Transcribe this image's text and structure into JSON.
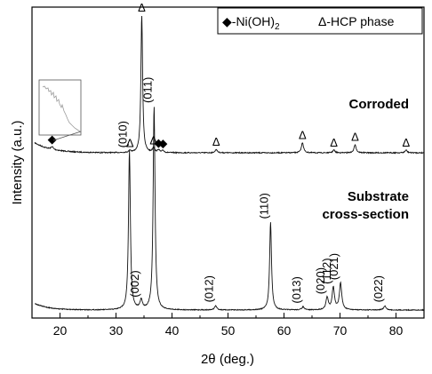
{
  "chart_data": {
    "type": "line",
    "xlabel": "2θ (deg.)",
    "ylabel": "Intensity (a.u.)",
    "xlim": [
      15,
      85
    ],
    "xticks": [
      "20",
      "30",
      "40",
      "50",
      "60",
      "70",
      "80"
    ],
    "legend": {
      "placement": "top-right",
      "entries": [
        {
          "symbol": "◆",
          "label": "-Ni(OH)",
          "subscript": "2"
        },
        {
          "symbol": "Δ",
          "label": "-HCP phase"
        }
      ]
    },
    "series": [
      {
        "name": "Corroded",
        "peaks": [
          {
            "x": 18.6,
            "height": 0.02,
            "marker": "◆"
          },
          {
            "x": 32.5,
            "height": 0.015,
            "marker": "Δ"
          },
          {
            "x": 34.6,
            "height": 1.0,
            "marker": "Δ"
          },
          {
            "x": 36.7,
            "height": 0.035,
            "marker": "Δ"
          },
          {
            "x": 37.6,
            "height": 0.02,
            "marker": "◆"
          },
          {
            "x": 38.4,
            "height": 0.015,
            "marker": "◆"
          },
          {
            "x": 47.9,
            "height": 0.025,
            "marker": "Δ"
          },
          {
            "x": 63.3,
            "height": 0.075,
            "marker": "Δ"
          },
          {
            "x": 68.9,
            "height": 0.02,
            "marker": "Δ"
          },
          {
            "x": 72.7,
            "height": 0.06,
            "marker": "Δ"
          },
          {
            "x": 81.8,
            "height": 0.02,
            "marker": "Δ"
          }
        ]
      },
      {
        "name": "Substrate cross-section",
        "label_lines": [
          "Substrate",
          "cross-section"
        ],
        "peaks": [
          {
            "x": 32.4,
            "height": 0.78,
            "label": "(010)"
          },
          {
            "x": 34.5,
            "height": 0.045,
            "label": "(002)"
          },
          {
            "x": 36.8,
            "height": 1.0,
            "label": "(011)"
          },
          {
            "x": 47.8,
            "height": 0.02,
            "label": "(012)"
          },
          {
            "x": 57.6,
            "height": 0.43,
            "label": "(110)"
          },
          {
            "x": 63.4,
            "height": 0.015,
            "label": "(013)"
          },
          {
            "x": 67.7,
            "height": 0.06,
            "label": "(020)"
          },
          {
            "x": 68.8,
            "height": 0.11,
            "label": "(112)"
          },
          {
            "x": 70.1,
            "height": 0.13,
            "label": "(021)"
          },
          {
            "x": 78.0,
            "height": 0.02,
            "label": "(022)"
          }
        ]
      }
    ]
  }
}
